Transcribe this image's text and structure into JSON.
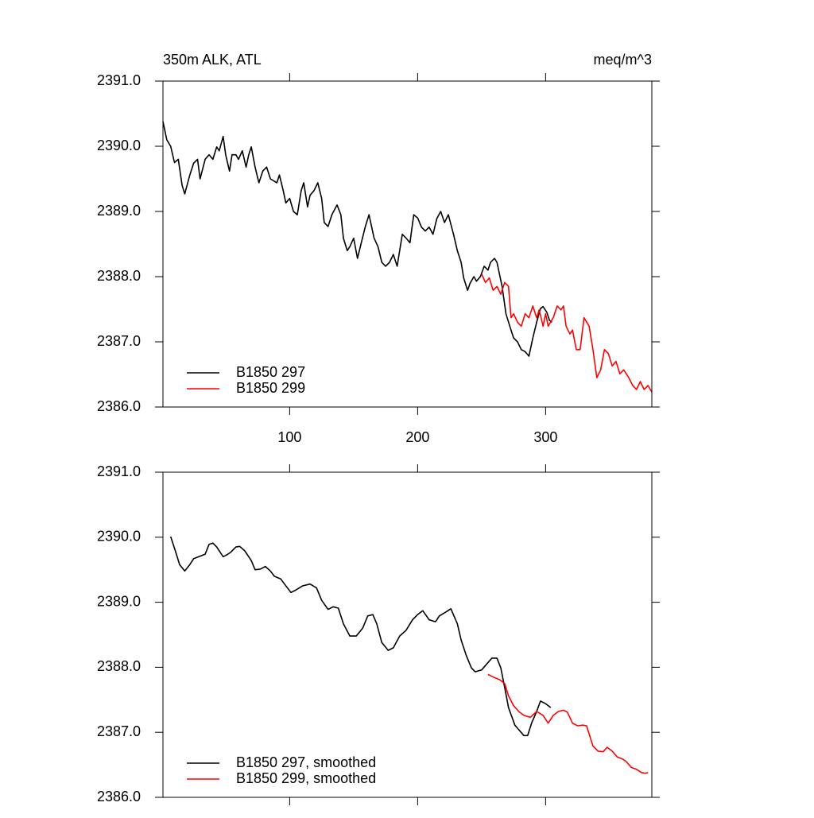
{
  "chart_data": [
    {
      "type": "line",
      "title": "350m ALK, ATL",
      "units": "meq/m^3",
      "xlim": [
        1,
        383
      ],
      "xticks": [
        100,
        200,
        300
      ],
      "xtick_labels": true,
      "ylim": [
        2386,
        2391
      ],
      "yticks": [
        {
          "value": 2386,
          "label": "2386.0"
        },
        {
          "value": 2387,
          "label": "2387.0"
        },
        {
          "value": 2388,
          "label": "2388.0"
        },
        {
          "value": 2389,
          "label": "2389.0"
        },
        {
          "value": 2390,
          "label": "2390.0"
        },
        {
          "value": 2391,
          "label": "2391.0"
        }
      ],
      "legend": "lower left",
      "series": [
        {
          "name": "B1850 297",
          "color": "#000000",
          "x": [
            1,
            4,
            7,
            10,
            13,
            16,
            18,
            22,
            25,
            28,
            30,
            34,
            37,
            40,
            43,
            45,
            48,
            50,
            53,
            55,
            58,
            60,
            63,
            66,
            68,
            70,
            73,
            76,
            79,
            82,
            85,
            90,
            92,
            95,
            97,
            100,
            103,
            106,
            109,
            111,
            114,
            116,
            119,
            122,
            125,
            127,
            130,
            133,
            137,
            140,
            142,
            145,
            147,
            150,
            153,
            156,
            159,
            162,
            166,
            169,
            172,
            175,
            178,
            181,
            184,
            188,
            191,
            194,
            197,
            200,
            203,
            206,
            209,
            212,
            215,
            218,
            221,
            224,
            228,
            231,
            234,
            236,
            239,
            241,
            244,
            246,
            249,
            252,
            255,
            257,
            260,
            262,
            266,
            269,
            272,
            275,
            278,
            281,
            284,
            287,
            290,
            293,
            296,
            298,
            301,
            303,
            305
          ],
          "values": [
            2390.38,
            2390.1,
            2390.0,
            2389.75,
            2389.8,
            2389.4,
            2389.27,
            2389.56,
            2389.74,
            2389.8,
            2389.5,
            2389.8,
            2389.87,
            2389.8,
            2389.99,
            2389.93,
            2390.15,
            2389.87,
            2389.62,
            2389.87,
            2389.87,
            2389.8,
            2389.93,
            2389.68,
            2389.87,
            2389.99,
            2389.68,
            2389.44,
            2389.62,
            2389.68,
            2389.5,
            2389.44,
            2389.56,
            2389.32,
            2389.13,
            2389.2,
            2389.0,
            2388.95,
            2389.32,
            2389.44,
            2389.07,
            2389.25,
            2389.32,
            2389.44,
            2389.2,
            2388.83,
            2388.77,
            2388.95,
            2389.1,
            2388.95,
            2388.59,
            2388.4,
            2388.46,
            2388.59,
            2388.28,
            2388.52,
            2388.76,
            2388.95,
            2388.59,
            2388.46,
            2388.22,
            2388.16,
            2388.22,
            2388.34,
            2388.16,
            2388.65,
            2388.59,
            2388.52,
            2388.95,
            2388.9,
            2388.76,
            2388.7,
            2388.76,
            2388.65,
            2388.89,
            2389.0,
            2388.83,
            2388.95,
            2388.65,
            2388.4,
            2388.22,
            2387.98,
            2387.79,
            2387.9,
            2388.0,
            2387.93,
            2388.0,
            2388.16,
            2388.1,
            2388.22,
            2388.28,
            2388.22,
            2387.85,
            2387.43,
            2387.24,
            2387.06,
            2387.0,
            2386.88,
            2386.85,
            2386.78,
            2387.06,
            2387.3,
            2387.51,
            2387.54,
            2387.45,
            2387.33,
            2387.3
          ]
        },
        {
          "name": "B1850 299",
          "color": "#ff0000",
          "x": [
            250,
            253,
            256,
            259,
            262,
            265,
            268,
            271,
            273,
            275,
            278,
            281,
            284,
            287,
            290,
            293,
            295,
            298,
            300,
            302,
            306,
            309,
            312,
            314,
            316,
            319,
            321,
            324,
            327,
            330,
            334,
            337,
            340,
            343,
            346,
            349,
            352,
            355,
            358,
            361,
            365,
            368,
            371,
            374,
            377,
            380,
            383
          ],
          "values": [
            2388.04,
            2387.91,
            2387.98,
            2387.79,
            2387.85,
            2387.73,
            2387.91,
            2387.85,
            2387.37,
            2387.43,
            2387.3,
            2387.24,
            2387.43,
            2387.37,
            2387.55,
            2387.37,
            2387.49,
            2387.24,
            2387.43,
            2387.24,
            2387.37,
            2387.55,
            2387.49,
            2387.55,
            2387.24,
            2387.12,
            2387.18,
            2386.88,
            2386.88,
            2387.37,
            2387.24,
            2386.88,
            2386.45,
            2386.57,
            2386.88,
            2386.82,
            2386.63,
            2386.7,
            2386.51,
            2386.57,
            2386.45,
            2386.33,
            2386.27,
            2386.39,
            2386.27,
            2386.33,
            2386.23
          ]
        }
      ]
    },
    {
      "type": "line",
      "xlim": [
        1,
        383
      ],
      "xticks": [
        100,
        200,
        300
      ],
      "xtick_labels": false,
      "ylim": [
        2386,
        2391
      ],
      "yticks": [
        {
          "value": 2386,
          "label": "2386.0"
        },
        {
          "value": 2387,
          "label": "2387.0"
        },
        {
          "value": 2388,
          "label": "2388.0"
        },
        {
          "value": 2389,
          "label": "2389.0"
        },
        {
          "value": 2390,
          "label": "2390.0"
        },
        {
          "value": 2391,
          "label": "2391.0"
        }
      ],
      "legend": "lower left",
      "series": [
        {
          "name": "B1850 297, smoothed",
          "color": "#000000",
          "x": [
            7,
            11,
            14,
            18,
            22,
            25,
            29,
            34,
            37,
            40,
            43,
            48,
            51,
            54,
            58,
            61,
            65,
            70,
            73,
            77,
            81,
            85,
            88,
            93,
            96,
            101,
            105,
            110,
            116,
            121,
            125,
            130,
            134,
            138,
            142,
            147,
            152,
            157,
            161,
            165,
            168,
            172,
            177,
            181,
            186,
            191,
            196,
            200,
            204,
            209,
            214,
            217,
            222,
            226,
            231,
            234,
            238,
            242,
            245,
            250,
            254,
            258,
            262,
            265,
            268,
            271,
            276,
            279,
            283,
            286,
            289,
            293,
            296,
            300,
            304
          ],
          "values": [
            2390.01,
            2389.77,
            2389.58,
            2389.48,
            2389.58,
            2389.67,
            2389.7,
            2389.74,
            2389.89,
            2389.91,
            2389.85,
            2389.7,
            2389.73,
            2389.77,
            2389.85,
            2389.86,
            2389.79,
            2389.64,
            2389.5,
            2389.51,
            2389.55,
            2389.48,
            2389.4,
            2389.36,
            2389.28,
            2389.15,
            2389.19,
            2389.25,
            2389.28,
            2389.22,
            2389.03,
            2388.89,
            2388.93,
            2388.91,
            2388.67,
            2388.48,
            2388.48,
            2388.6,
            2388.79,
            2388.81,
            2388.67,
            2388.38,
            2388.26,
            2388.3,
            2388.48,
            2388.57,
            2388.73,
            2388.81,
            2388.87,
            2388.73,
            2388.7,
            2388.79,
            2388.85,
            2388.9,
            2388.67,
            2388.42,
            2388.18,
            2387.99,
            2387.93,
            2387.96,
            2388.05,
            2388.14,
            2388.14,
            2387.99,
            2387.69,
            2387.38,
            2387.11,
            2387.04,
            2386.95,
            2386.95,
            2387.14,
            2387.32,
            2387.48,
            2387.44,
            2387.38
          ]
        },
        {
          "name": "B1850 299, smoothed",
          "color": "#ff0000",
          "x": [
            255,
            259,
            264,
            268,
            271,
            275,
            279,
            283,
            288,
            293,
            298,
            302,
            306,
            310,
            314,
            317,
            321,
            325,
            329,
            332,
            337,
            341,
            345,
            348,
            352,
            356,
            360,
            363,
            367,
            371,
            375,
            378,
            380
          ],
          "values": [
            2387.89,
            2387.85,
            2387.81,
            2387.75,
            2387.56,
            2387.41,
            2387.32,
            2387.26,
            2387.23,
            2387.32,
            2387.26,
            2387.14,
            2387.26,
            2387.32,
            2387.34,
            2387.31,
            2387.14,
            2387.1,
            2387.11,
            2387.1,
            2386.79,
            2386.71,
            2386.7,
            2386.77,
            2386.71,
            2386.62,
            2386.59,
            2386.55,
            2386.46,
            2386.43,
            2386.38,
            2386.37,
            2386.38
          ]
        }
      ]
    }
  ]
}
